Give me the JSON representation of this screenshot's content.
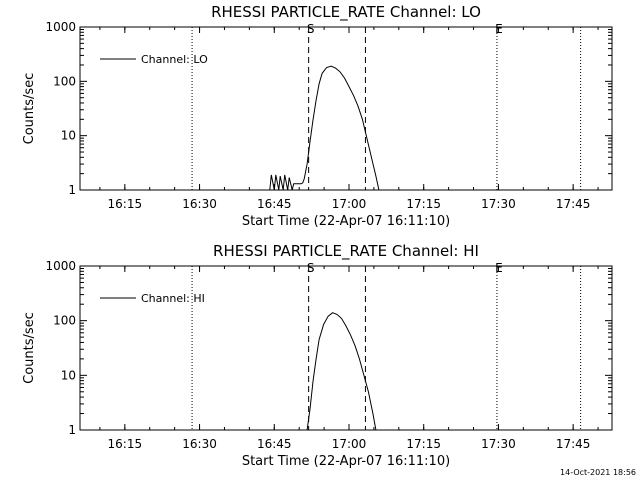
{
  "chart_data": [
    {
      "type": "line",
      "title": "RHESSI PARTICLE_RATE Channel: LO",
      "xlabel": "Start Time (22-Apr-07 16:11:10)",
      "ylabel": "Counts/sec",
      "yscale": "log",
      "ylim": [
        1,
        1000
      ],
      "xlim": [
        16.1,
        17.88
      ],
      "x_ticks": [
        {
          "label": "16:15",
          "value": 16.25
        },
        {
          "label": "16:30",
          "value": 16.5
        },
        {
          "label": "16:45",
          "value": 16.75
        },
        {
          "label": "17:00",
          "value": 17.0
        },
        {
          "label": "17:15",
          "value": 17.25
        },
        {
          "label": "17:30",
          "value": 17.5
        },
        {
          "label": "17:45",
          "value": 17.75
        }
      ],
      "y_ticks": [
        {
          "label": "1",
          "value": 1
        },
        {
          "label": "10",
          "value": 10
        },
        {
          "label": "100",
          "value": 100
        },
        {
          "label": "1000",
          "value": 1000
        }
      ],
      "legend": {
        "entry": "Channel: LO",
        "location": "top-left"
      },
      "vertical_lines": [
        {
          "x": 16.475,
          "style": "dotted",
          "label": ""
        },
        {
          "x": 16.865,
          "style": "dashed",
          "label": "S"
        },
        {
          "x": 17.055,
          "style": "dashed",
          "label": ""
        },
        {
          "x": 17.495,
          "style": "dotted",
          "label": "E"
        },
        {
          "x": 17.775,
          "style": "dotted",
          "label": ""
        }
      ],
      "series": [
        {
          "name": "Channel: LO",
          "x": [
            16.72,
            16.735,
            16.74,
            16.75,
            16.755,
            16.765,
            16.77,
            16.78,
            16.785,
            16.795,
            16.8,
            16.81,
            16.815,
            16.825,
            16.83,
            16.84,
            16.845,
            16.85,
            16.86,
            16.87,
            16.88,
            16.89,
            16.9,
            16.91,
            16.925,
            16.94,
            16.955,
            16.97,
            16.985,
            17.0,
            17.015,
            17.03,
            17.045,
            17.06,
            17.075,
            17.09,
            17.1
          ],
          "y": [
            1,
            1,
            1.9,
            1,
            1.9,
            1,
            1.8,
            1,
            1.9,
            1,
            1.7,
            1,
            1.3,
            1.3,
            1.3,
            1.3,
            1.35,
            1.6,
            3,
            8,
            20,
            45,
            90,
            140,
            180,
            190,
            175,
            150,
            115,
            80,
            55,
            35,
            20,
            9,
            4,
            1.8,
            1
          ]
        }
      ]
    },
    {
      "type": "line",
      "title": "RHESSI PARTICLE_RATE Channel: HI",
      "xlabel": "Start Time (22-Apr-07 16:11:10)",
      "ylabel": "Counts/sec",
      "yscale": "log",
      "ylim": [
        1,
        1000
      ],
      "xlim": [
        16.1,
        17.88
      ],
      "x_ticks": [
        {
          "label": "16:15",
          "value": 16.25
        },
        {
          "label": "16:30",
          "value": 16.5
        },
        {
          "label": "16:45",
          "value": 16.75
        },
        {
          "label": "17:00",
          "value": 17.0
        },
        {
          "label": "17:15",
          "value": 17.25
        },
        {
          "label": "17:30",
          "value": 17.5
        },
        {
          "label": "17:45",
          "value": 17.75
        }
      ],
      "y_ticks": [
        {
          "label": "1",
          "value": 1
        },
        {
          "label": "10",
          "value": 10
        },
        {
          "label": "100",
          "value": 100
        },
        {
          "label": "1000",
          "value": 1000
        }
      ],
      "legend": {
        "entry": "Channel: HI",
        "location": "top-left"
      },
      "vertical_lines": [
        {
          "x": 16.475,
          "style": "dotted",
          "label": ""
        },
        {
          "x": 16.865,
          "style": "dashed",
          "label": "S"
        },
        {
          "x": 17.055,
          "style": "dashed",
          "label": ""
        },
        {
          "x": 17.495,
          "style": "dotted",
          "label": "E"
        },
        {
          "x": 17.775,
          "style": "dotted",
          "label": ""
        }
      ],
      "series": [
        {
          "name": "Channel: HI",
          "x": [
            16.86,
            16.87,
            16.88,
            16.89,
            16.9,
            16.915,
            16.93,
            16.945,
            16.96,
            16.975,
            16.99,
            17.005,
            17.02,
            17.035,
            17.05,
            17.065,
            17.08,
            17.09
          ],
          "y": [
            1,
            2.5,
            8,
            20,
            45,
            85,
            120,
            140,
            130,
            110,
            80,
            55,
            35,
            20,
            10,
            5,
            2,
            1
          ]
        }
      ]
    }
  ],
  "footer": {
    "timestamp": "14-Oct-2021 18:56"
  },
  "style": {
    "axis_color": "#000000",
    "line_color": "#000000",
    "background": "#ffffff"
  }
}
